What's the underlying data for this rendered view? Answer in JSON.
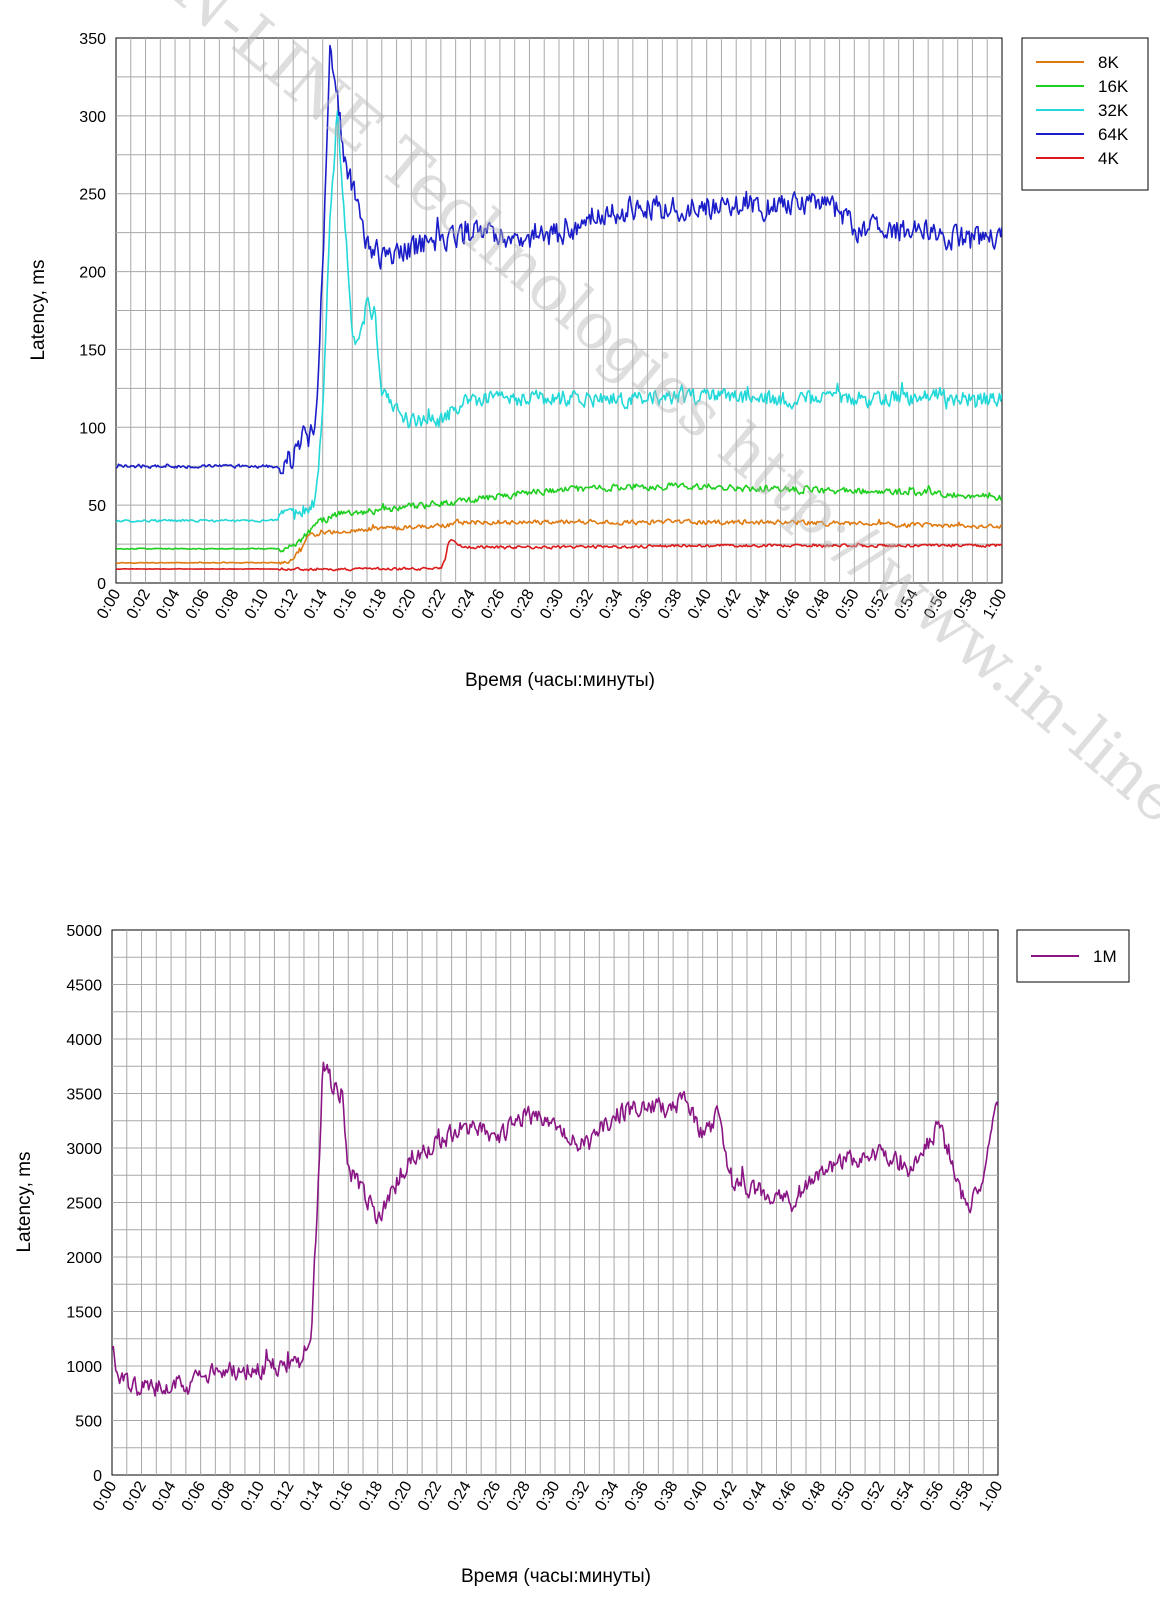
{
  "chart_data": [
    {
      "type": "line",
      "xlabel": "Время (часы:минуты)",
      "ylabel": "Latency, ms",
      "ylim": [
        0,
        350
      ],
      "yticks": [
        "0",
        "50",
        "100",
        "150",
        "200",
        "250",
        "300",
        "350"
      ],
      "xlim_minutes": [
        0,
        60
      ],
      "xticks": [
        "0:00",
        "0:02",
        "0:04",
        "0:06",
        "0:08",
        "0:10",
        "0:12",
        "0:14",
        "0:16",
        "0:18",
        "0:20",
        "0:22",
        "0:24",
        "0:26",
        "0:28",
        "0:30",
        "0:32",
        "0:34",
        "0:36",
        "0:38",
        "0:40",
        "0:42",
        "0:44",
        "0:46",
        "0:48",
        "0:50",
        "0:52",
        "0:54",
        "0:56",
        "0:58",
        "1:00"
      ],
      "grid": true,
      "legend_position": "top-right",
      "series": [
        {
          "name": "8K",
          "color": "#e07a10",
          "noise": 2.0,
          "points": [
            [
              0,
              13
            ],
            [
              11.5,
              13
            ],
            [
              12.5,
              20
            ],
            [
              13,
              30
            ],
            [
              15,
              33
            ],
            [
              18,
              35
            ],
            [
              20,
              36
            ],
            [
              22.5,
              37
            ],
            [
              23,
              39
            ],
            [
              26,
              39
            ],
            [
              30,
              39
            ],
            [
              35,
              39
            ],
            [
              40,
              39
            ],
            [
              45,
              39
            ],
            [
              50,
              38
            ],
            [
              55,
              37
            ],
            [
              60,
              36
            ]
          ]
        },
        {
          "name": "16K",
          "color": "#1fcf1f",
          "noise": 3.0,
          "points": [
            [
              0,
              22
            ],
            [
              11.5,
              22
            ],
            [
              12.5,
              27
            ],
            [
              13.5,
              38
            ],
            [
              15,
              44
            ],
            [
              17,
              46
            ],
            [
              20,
              49
            ],
            [
              23,
              52
            ],
            [
              26,
              56
            ],
            [
              30,
              60
            ],
            [
              35,
              62
            ],
            [
              40,
              62
            ],
            [
              45,
              60
            ],
            [
              50,
              59
            ],
            [
              55,
              58
            ],
            [
              60,
              55
            ]
          ]
        },
        {
          "name": "32K",
          "color": "#22d8d8",
          "noise": 7.0,
          "points": [
            [
              0,
              40
            ],
            [
              11,
              40
            ],
            [
              12.5,
              45
            ],
            [
              13.5,
              52
            ],
            [
              14,
              110
            ],
            [
              14.5,
              240
            ],
            [
              15,
              300
            ],
            [
              15.5,
              230
            ],
            [
              16,
              160
            ],
            [
              16.5,
              155
            ],
            [
              17,
              180
            ],
            [
              17.5,
              175
            ],
            [
              18,
              125
            ],
            [
              19,
              110
            ],
            [
              20,
              104
            ],
            [
              22,
              104
            ],
            [
              23,
              110
            ],
            [
              24,
              118
            ],
            [
              30,
              118
            ],
            [
              35,
              118
            ],
            [
              40,
              120
            ],
            [
              45,
              118
            ],
            [
              50,
              118
            ],
            [
              55,
              120
            ],
            [
              60,
              118
            ]
          ]
        },
        {
          "name": "64K",
          "color": "#1b1ec8",
          "noise": 11.0,
          "points": [
            [
              0,
              75
            ],
            [
              11.5,
              75
            ],
            [
              12.5,
              90
            ],
            [
              13.5,
              98
            ],
            [
              14,
              200
            ],
            [
              14.5,
              350
            ],
            [
              15,
              310
            ],
            [
              15.5,
              270
            ],
            [
              16.5,
              240
            ],
            [
              17,
              215
            ],
            [
              18,
              210
            ],
            [
              20,
              215
            ],
            [
              22,
              222
            ],
            [
              25,
              225
            ],
            [
              28,
              222
            ],
            [
              31,
              225
            ],
            [
              32,
              238
            ],
            [
              35,
              240
            ],
            [
              40,
              243
            ],
            [
              44,
              240
            ],
            [
              47,
              243
            ],
            [
              49,
              238
            ],
            [
              50,
              228
            ],
            [
              55,
              225
            ],
            [
              58,
              220
            ],
            [
              60,
              222
            ]
          ]
        },
        {
          "name": "4K",
          "color": "#dd1a1a",
          "noise": 1.2,
          "points": [
            [
              0,
              9
            ],
            [
              22,
              9
            ],
            [
              22.3,
              15
            ],
            [
              22.5,
              27
            ],
            [
              23,
              26
            ],
            [
              23.5,
              23
            ],
            [
              30,
              23
            ],
            [
              40,
              24
            ],
            [
              50,
              24
            ],
            [
              60,
              24
            ]
          ]
        }
      ]
    },
    {
      "type": "line",
      "xlabel": "Время (часы:минуты)",
      "ylabel": "Latency, ms",
      "ylim": [
        0,
        5000
      ],
      "yticks": [
        "0",
        "500",
        "1000",
        "1500",
        "2000",
        "2500",
        "3000",
        "3500",
        "4000",
        "4500",
        "5000"
      ],
      "xlim_minutes": [
        0,
        60
      ],
      "xticks": [
        "0:00",
        "0:02",
        "0:04",
        "0:06",
        "0:08",
        "0:10",
        "0:12",
        "0:14",
        "0:16",
        "0:18",
        "0:20",
        "0:22",
        "0:24",
        "0:26",
        "0:28",
        "0:30",
        "0:32",
        "0:34",
        "0:36",
        "0:38",
        "0:40",
        "0:42",
        "0:44",
        "0:46",
        "0:48",
        "0:50",
        "0:52",
        "0:54",
        "0:56",
        "0:58",
        "1:00"
      ],
      "grid": true,
      "legend_position": "top-right",
      "series": [
        {
          "name": "1M",
          "color": "#8a1585",
          "noise": 120,
          "points": [
            [
              0,
              1150
            ],
            [
              0.5,
              850
            ],
            [
              2,
              800
            ],
            [
              4,
              820
            ],
            [
              6,
              900
            ],
            [
              8,
              960
            ],
            [
              10,
              980
            ],
            [
              12,
              1000
            ],
            [
              13,
              1050
            ],
            [
              13.5,
              1300
            ],
            [
              14,
              2800
            ],
            [
              14.3,
              3800
            ],
            [
              15,
              3550
            ],
            [
              15.6,
              3500
            ],
            [
              16,
              2800
            ],
            [
              17,
              2600
            ],
            [
              18,
              2350
            ],
            [
              19,
              2600
            ],
            [
              20,
              2900
            ],
            [
              22,
              3050
            ],
            [
              24,
              3200
            ],
            [
              26,
              3100
            ],
            [
              28,
              3300
            ],
            [
              30,
              3250
            ],
            [
              32,
              3000
            ],
            [
              34,
              3300
            ],
            [
              36,
              3400
            ],
            [
              38,
              3350
            ],
            [
              39,
              3450
            ],
            [
              40,
              3100
            ],
            [
              41,
              3300
            ],
            [
              42,
              2700
            ],
            [
              44,
              2600
            ],
            [
              46,
              2500
            ],
            [
              48,
              2800
            ],
            [
              50,
              2900
            ],
            [
              52,
              2950
            ],
            [
              54,
              2800
            ],
            [
              55,
              3000
            ],
            [
              56,
              3200
            ],
            [
              57,
              2800
            ],
            [
              58,
              2400
            ],
            [
              59,
              2750
            ],
            [
              60,
              3400
            ]
          ]
        }
      ]
    }
  ],
  "watermark": "IN-LINE Technologies http://www.in-line.ru/"
}
